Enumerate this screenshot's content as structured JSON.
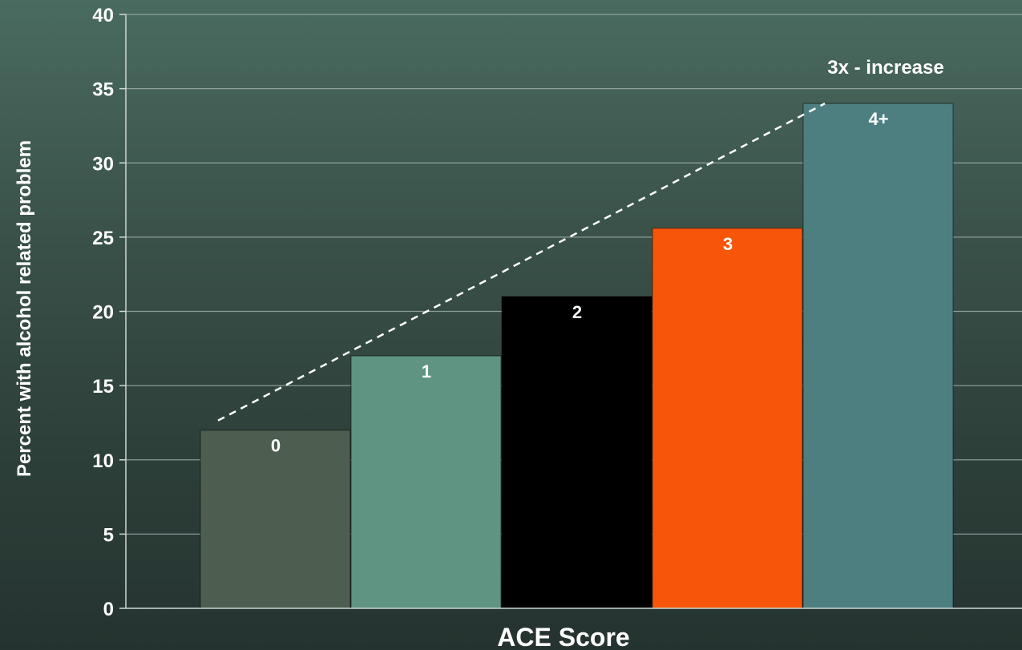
{
  "chart_data": {
    "type": "bar",
    "categories": [
      "0",
      "1",
      "2",
      "3",
      "4+"
    ],
    "values": [
      12,
      17,
      21,
      25.6,
      34
    ],
    "colors": [
      "#4d5e50",
      "#5f9482",
      "#000000",
      "#f7560a",
      "#4e7f80"
    ],
    "xlabel": "ACE Score",
    "ylabel": "Percent with alcohol related problem",
    "ylim": [
      0,
      40
    ],
    "yticks": [
      0,
      5,
      10,
      15,
      20,
      25,
      30,
      35,
      40
    ],
    "grid": true,
    "trend_line": {
      "from": "0",
      "to": "4+",
      "style": "dashed"
    },
    "annotation": "3x - increase"
  }
}
